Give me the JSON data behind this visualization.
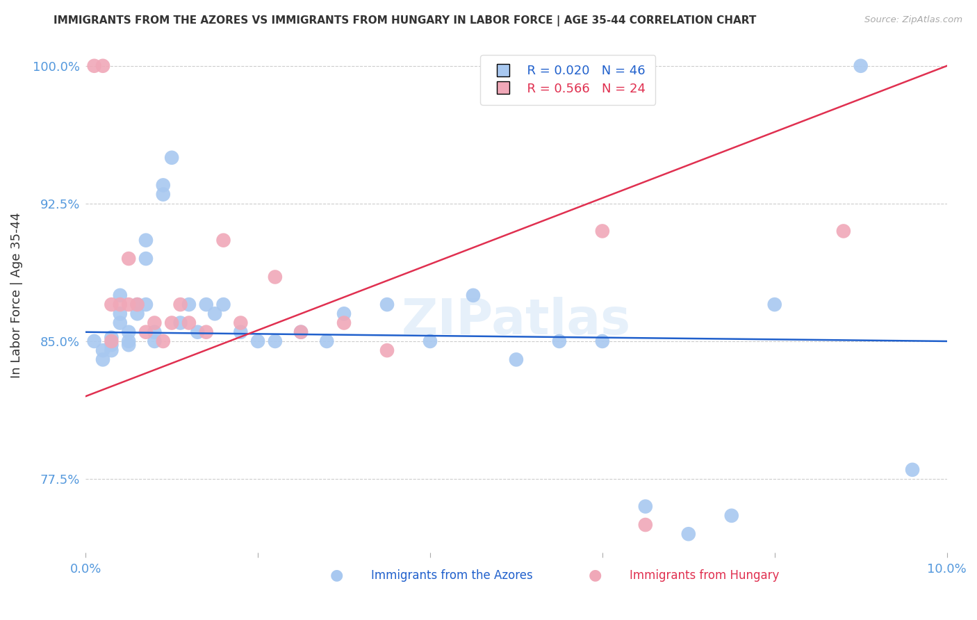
{
  "title": "IMMIGRANTS FROM THE AZORES VS IMMIGRANTS FROM HUNGARY IN LABOR FORCE | AGE 35-44 CORRELATION CHART",
  "source": "Source: ZipAtlas.com",
  "ylabel": "In Labor Force | Age 35-44",
  "xlim": [
    0.0,
    0.1
  ],
  "ylim": [
    0.735,
    1.015
  ],
  "yticks": [
    0.775,
    0.85,
    0.925,
    1.0
  ],
  "ytick_labels": [
    "77.5%",
    "85.0%",
    "92.5%",
    "100.0%"
  ],
  "xticks": [
    0.0,
    0.02,
    0.04,
    0.06,
    0.08,
    0.1
  ],
  "xtick_labels": [
    "0.0%",
    "",
    "",
    "",
    "",
    "10.0%"
  ],
  "legend_azores_R": "0.020",
  "legend_azores_N": "46",
  "legend_hungary_R": "0.566",
  "legend_hungary_N": "24",
  "color_azores": "#a8c8f0",
  "color_hungary": "#f0a8b8",
  "color_azores_line": "#2060cc",
  "color_hungary_line": "#e03050",
  "color_title": "#333333",
  "color_source": "#aaaaaa",
  "color_ylabel": "#333333",
  "color_axis_tick": "#5599dd",
  "color_grid": "#cccccc",
  "azores_x": [
    0.001,
    0.002,
    0.002,
    0.003,
    0.003,
    0.003,
    0.004,
    0.004,
    0.004,
    0.005,
    0.005,
    0.005,
    0.006,
    0.006,
    0.007,
    0.007,
    0.007,
    0.008,
    0.008,
    0.009,
    0.009,
    0.01,
    0.011,
    0.012,
    0.013,
    0.014,
    0.015,
    0.016,
    0.018,
    0.02,
    0.022,
    0.025,
    0.028,
    0.03,
    0.035,
    0.04,
    0.045,
    0.05,
    0.055,
    0.06,
    0.065,
    0.07,
    0.075,
    0.08,
    0.09,
    0.096
  ],
  "azores_y": [
    0.85,
    0.845,
    0.84,
    0.852,
    0.848,
    0.845,
    0.875,
    0.86,
    0.865,
    0.85,
    0.848,
    0.855,
    0.87,
    0.865,
    0.905,
    0.895,
    0.87,
    0.85,
    0.855,
    0.935,
    0.93,
    0.95,
    0.86,
    0.87,
    0.855,
    0.87,
    0.865,
    0.87,
    0.855,
    0.85,
    0.85,
    0.855,
    0.85,
    0.865,
    0.87,
    0.85,
    0.875,
    0.84,
    0.85,
    0.85,
    0.76,
    0.745,
    0.755,
    0.87,
    1.0,
    0.78
  ],
  "hungary_x": [
    0.001,
    0.002,
    0.003,
    0.003,
    0.004,
    0.005,
    0.005,
    0.006,
    0.007,
    0.008,
    0.009,
    0.01,
    0.011,
    0.012,
    0.014,
    0.016,
    0.018,
    0.022,
    0.025,
    0.03,
    0.035,
    0.06,
    0.065,
    0.088
  ],
  "hungary_y": [
    1.0,
    1.0,
    0.85,
    0.87,
    0.87,
    0.87,
    0.895,
    0.87,
    0.855,
    0.86,
    0.85,
    0.86,
    0.87,
    0.86,
    0.855,
    0.905,
    0.86,
    0.885,
    0.855,
    0.86,
    0.845,
    0.91,
    0.75,
    0.91
  ],
  "azores_line_y0": 0.855,
  "azores_line_y1": 0.85,
  "hungary_line_y0": 0.82,
  "hungary_line_y1": 1.0,
  "watermark_text": "ZIPatlas",
  "watermark_color": "#c8dff5",
  "watermark_alpha": 0.45
}
